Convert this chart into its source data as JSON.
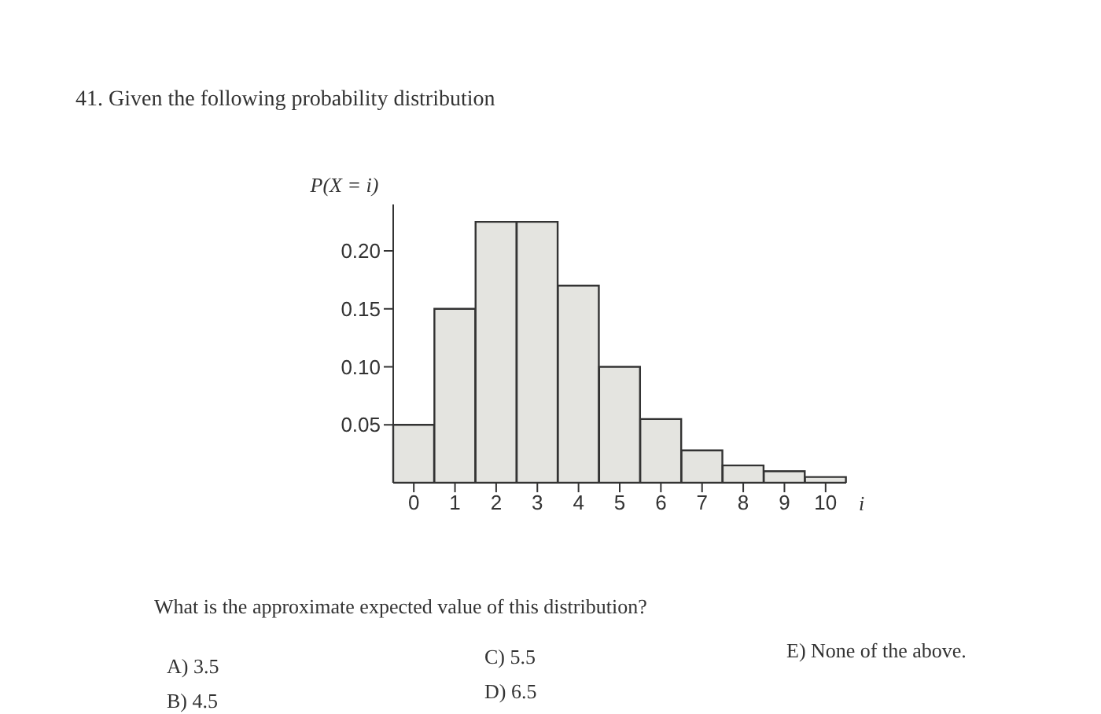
{
  "chart_data": {
    "type": "bar",
    "title": "41. Given the following probability distribution",
    "ylabel": "P(X = i)",
    "xlabel": "i",
    "categories": [
      "0",
      "1",
      "2",
      "3",
      "4",
      "5",
      "6",
      "7",
      "8",
      "9",
      "10"
    ],
    "values": [
      0.05,
      0.15,
      0.225,
      0.225,
      0.17,
      0.1,
      0.055,
      0.028,
      0.015,
      0.01,
      0.005
    ],
    "color": "#e4e4e0",
    "ylim": [
      0,
      0.24
    ],
    "yticks": [
      {
        "value": 0.05,
        "label": "0.05"
      },
      {
        "value": 0.1,
        "label": "0.10"
      },
      {
        "value": 0.15,
        "label": "0.15"
      },
      {
        "value": 0.2,
        "label": "0.20"
      }
    ],
    "grid": false,
    "annotations": [
      "What is the approximate expected value of this distribution?",
      "A) 3.5",
      "B) 4.5",
      "C) 5.5",
      "D) 6.5",
      "E) None of the above."
    ]
  }
}
